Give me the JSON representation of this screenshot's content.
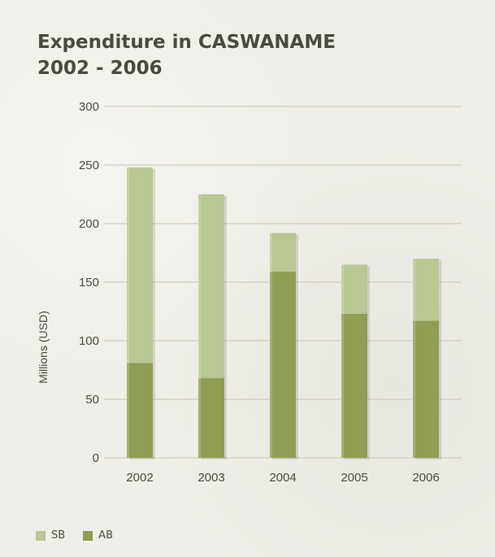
{
  "title_line1": "Expenditure in CASWANAME",
  "title_line2": "2002 - 2006",
  "colors": {
    "SB": "#b9c793",
    "AB": "#8f9e52",
    "grid": "#c9c6b8",
    "text": "#4d4d45"
  },
  "chart_data": {
    "type": "bar",
    "stacked": true,
    "categories": [
      "2002",
      "2003",
      "2004",
      "2005",
      "2006"
    ],
    "series": [
      {
        "name": "AB",
        "values": [
          81,
          68,
          159,
          123,
          117
        ]
      },
      {
        "name": "SB",
        "values": [
          167,
          157,
          33,
          42,
          53
        ]
      }
    ],
    "ylabel": "Millions (USD)",
    "xlabel": "",
    "ylim": [
      0,
      300
    ],
    "yticks": [
      0,
      50,
      100,
      150,
      200,
      250,
      300
    ],
    "grid": true,
    "legend_position": "bottom-left"
  },
  "legend": [
    {
      "label": "SB",
      "color_key": "SB"
    },
    {
      "label": "AB",
      "color_key": "AB"
    }
  ]
}
